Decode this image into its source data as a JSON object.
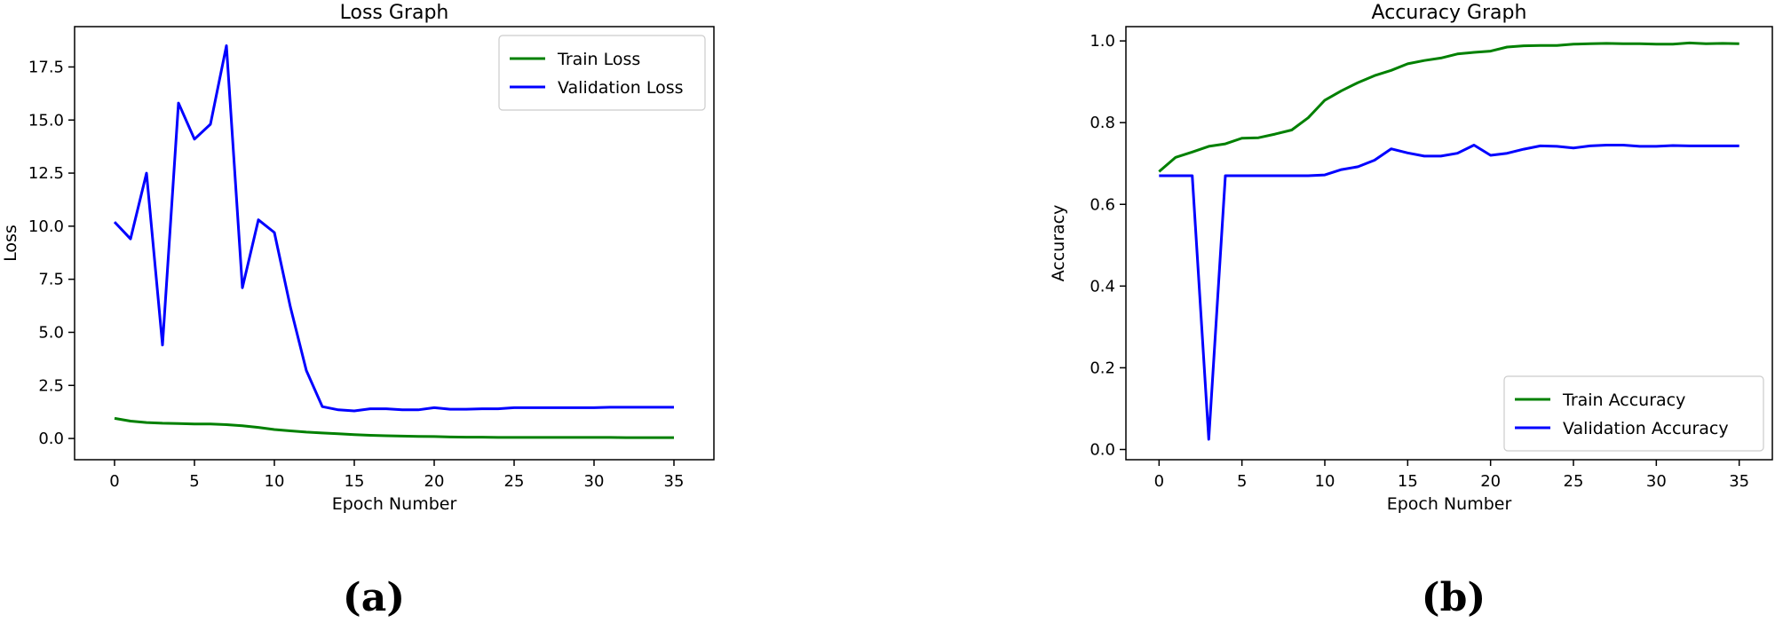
{
  "captions": [
    "(a)",
    "(b)"
  ],
  "chart_data": [
    {
      "type": "line",
      "title": "Loss Graph",
      "xlabel": "Epoch Number",
      "ylabel": "Loss",
      "xlim": [
        -2.5,
        37.5
      ],
      "ylim": [
        -1.0,
        19.4
      ],
      "xticks": [
        0,
        5,
        10,
        15,
        20,
        25,
        30,
        35
      ],
      "xtick_labels": [
        "0",
        "5",
        "10",
        "15",
        "20",
        "25",
        "30",
        "35"
      ],
      "yticks": [
        0,
        2.5,
        5,
        7.5,
        10,
        12.5,
        15,
        17.5
      ],
      "ytick_labels": [
        "0.0",
        "2.5",
        "5.0",
        "7.5",
        "10.0",
        "12.5",
        "15.0",
        "17.5"
      ],
      "legend_position": "top-right",
      "x": [
        0,
        1,
        2,
        3,
        4,
        5,
        6,
        7,
        8,
        9,
        10,
        11,
        12,
        13,
        14,
        15,
        16,
        17,
        18,
        19,
        20,
        21,
        22,
        23,
        24,
        25,
        26,
        27,
        28,
        29,
        30,
        31,
        32,
        33,
        34,
        35
      ],
      "series": [
        {
          "name": "Train Loss",
          "color": "#008000",
          "values": [
            0.95,
            0.82,
            0.75,
            0.72,
            0.7,
            0.68,
            0.68,
            0.65,
            0.6,
            0.52,
            0.42,
            0.36,
            0.3,
            0.26,
            0.22,
            0.18,
            0.15,
            0.13,
            0.11,
            0.1,
            0.09,
            0.07,
            0.06,
            0.06,
            0.05,
            0.05,
            0.05,
            0.05,
            0.05,
            0.05,
            0.05,
            0.05,
            0.04,
            0.04,
            0.04,
            0.04
          ]
        },
        {
          "name": "Validation Loss",
          "color": "#0000ff",
          "values": [
            10.2,
            9.4,
            12.5,
            4.4,
            15.8,
            14.1,
            14.8,
            18.5,
            7.1,
            10.3,
            9.7,
            6.2,
            3.2,
            1.5,
            1.35,
            1.3,
            1.4,
            1.4,
            1.35,
            1.35,
            1.45,
            1.38,
            1.38,
            1.4,
            1.4,
            1.45,
            1.45,
            1.45,
            1.45,
            1.45,
            1.45,
            1.47,
            1.47,
            1.47,
            1.47,
            1.47
          ]
        }
      ]
    },
    {
      "type": "line",
      "title": "Accuracy Graph",
      "xlabel": "Epoch Number",
      "ylabel": "Accuracy",
      "xlim": [
        -2.0,
        37.0
      ],
      "ylim": [
        -0.025,
        1.035
      ],
      "xticks": [
        0,
        5,
        10,
        15,
        20,
        25,
        30,
        35
      ],
      "xtick_labels": [
        "0",
        "5",
        "10",
        "15",
        "20",
        "25",
        "30",
        "35"
      ],
      "yticks": [
        0,
        0.2,
        0.4,
        0.6,
        0.8,
        1.0
      ],
      "ytick_labels": [
        "0.0",
        "0.2",
        "0.4",
        "0.6",
        "0.8",
        "1.0"
      ],
      "legend_position": "bottom-right",
      "x": [
        0,
        1,
        2,
        3,
        4,
        5,
        6,
        7,
        8,
        9,
        10,
        11,
        12,
        13,
        14,
        15,
        16,
        17,
        18,
        19,
        20,
        21,
        22,
        23,
        24,
        25,
        26,
        27,
        28,
        29,
        30,
        31,
        32,
        33,
        34,
        35
      ],
      "series": [
        {
          "name": "Train Accuracy",
          "color": "#008000",
          "values": [
            0.68,
            0.715,
            0.728,
            0.742,
            0.748,
            0.762,
            0.763,
            0.772,
            0.782,
            0.812,
            0.855,
            0.878,
            0.898,
            0.915,
            0.928,
            0.944,
            0.952,
            0.958,
            0.968,
            0.972,
            0.975,
            0.985,
            0.988,
            0.989,
            0.989,
            0.992,
            0.993,
            0.994,
            0.993,
            0.993,
            0.992,
            0.992,
            0.995,
            0.993,
            0.994,
            0.993
          ]
        },
        {
          "name": "Validation Accuracy",
          "color": "#0000ff",
          "values": [
            0.67,
            0.67,
            0.67,
            0.025,
            0.67,
            0.67,
            0.67,
            0.67,
            0.67,
            0.67,
            0.672,
            0.685,
            0.692,
            0.708,
            0.736,
            0.726,
            0.718,
            0.718,
            0.725,
            0.745,
            0.72,
            0.725,
            0.735,
            0.743,
            0.742,
            0.738,
            0.743,
            0.745,
            0.745,
            0.742,
            0.742,
            0.744,
            0.743,
            0.743,
            0.743,
            0.743
          ]
        }
      ]
    }
  ]
}
